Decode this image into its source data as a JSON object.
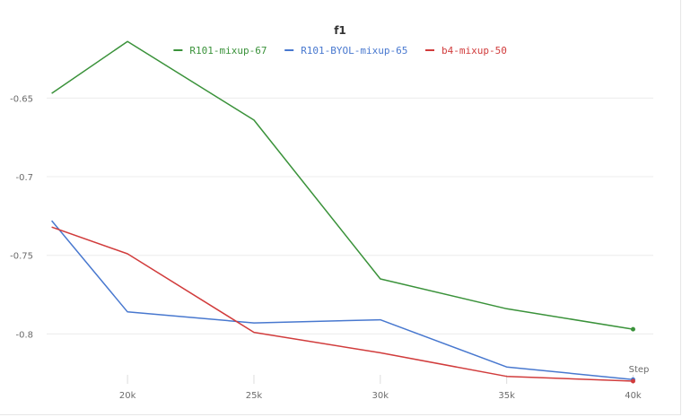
{
  "chart_data": {
    "type": "line",
    "title": "f1",
    "xlabel": "Step",
    "ylabel": "",
    "x": [
      17000,
      20000,
      25000,
      30000,
      35000,
      40000
    ],
    "xlim": [
      16800,
      40800
    ],
    "ylim": [
      -0.834,
      -0.615
    ],
    "x_ticks": [
      20000,
      25000,
      30000,
      35000,
      40000
    ],
    "x_tick_labels": [
      "20k",
      "25k",
      "30k",
      "35k",
      "40k"
    ],
    "y_ticks": [
      -0.65,
      -0.7,
      -0.75,
      -0.8
    ],
    "y_tick_labels": [
      "-0.65",
      "-0.7",
      "-0.75",
      "-0.8"
    ],
    "grid": "horizontal",
    "legend_position": "top-center",
    "series": [
      {
        "name": "R101-mixup-67",
        "color": "#3a923a",
        "values": [
          -0.647,
          -0.614,
          -0.664,
          -0.765,
          -0.784,
          -0.797
        ]
      },
      {
        "name": "R101-BYOL-mixup-65",
        "color": "#4878cf",
        "values": [
          -0.728,
          -0.786,
          -0.793,
          -0.791,
          -0.821,
          -0.829
        ]
      },
      {
        "name": "b4-mixup-50",
        "color": "#d13c3c",
        "values": [
          -0.732,
          -0.749,
          -0.799,
          -0.812,
          -0.827,
          -0.83
        ]
      }
    ]
  }
}
